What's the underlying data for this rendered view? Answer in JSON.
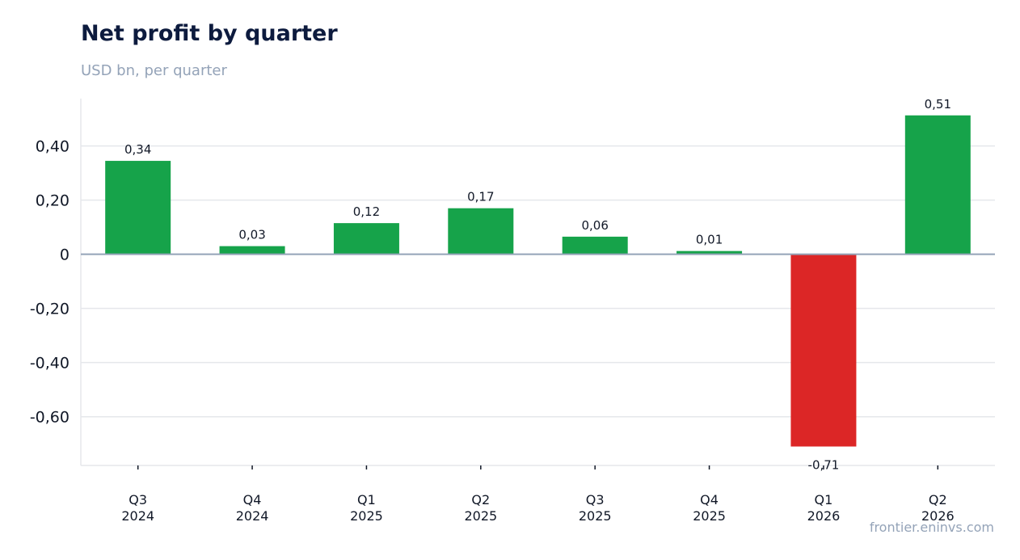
{
  "header": {
    "title": "Net profit by quarter",
    "subtitle": "USD bn, per quarter"
  },
  "footer": {
    "source": "frontier.eninvs.com"
  },
  "chart_data": {
    "type": "bar",
    "title": "Net profit by quarter",
    "subtitle": "USD bn, per quarter",
    "xlabel": "",
    "ylabel": "",
    "categories": [
      [
        "Q3",
        "2024"
      ],
      [
        "Q4",
        "2024"
      ],
      [
        "Q1",
        "2025"
      ],
      [
        "Q2",
        "2025"
      ],
      [
        "Q3",
        "2025"
      ],
      [
        "Q4",
        "2025"
      ],
      [
        "Q1",
        "2026"
      ],
      [
        "Q2",
        "2026"
      ]
    ],
    "values": [
      0.345,
      0.03,
      0.115,
      0.17,
      0.065,
      0.012,
      -0.71,
      0.513
    ],
    "value_labels": [
      "0,34",
      "0,03",
      "0,12",
      "0,17",
      "0,06",
      "0,01",
      "-0,71",
      "0,51"
    ],
    "ylim": [
      -0.78,
      0.575
    ],
    "yticks": [
      0.4,
      0.2,
      0,
      -0.2,
      -0.4,
      -0.6
    ],
    "ytick_labels": [
      "0,40",
      "0,20",
      "0",
      "-0,20",
      "-0,40",
      "-0,60"
    ],
    "grid": true,
    "legend": "none",
    "colors": {
      "positive": "#16a34a",
      "negative": "#dc2626",
      "grid": "#e5e7eb",
      "zero_line": "#94a3b8",
      "axis": "#e5e7eb"
    }
  }
}
